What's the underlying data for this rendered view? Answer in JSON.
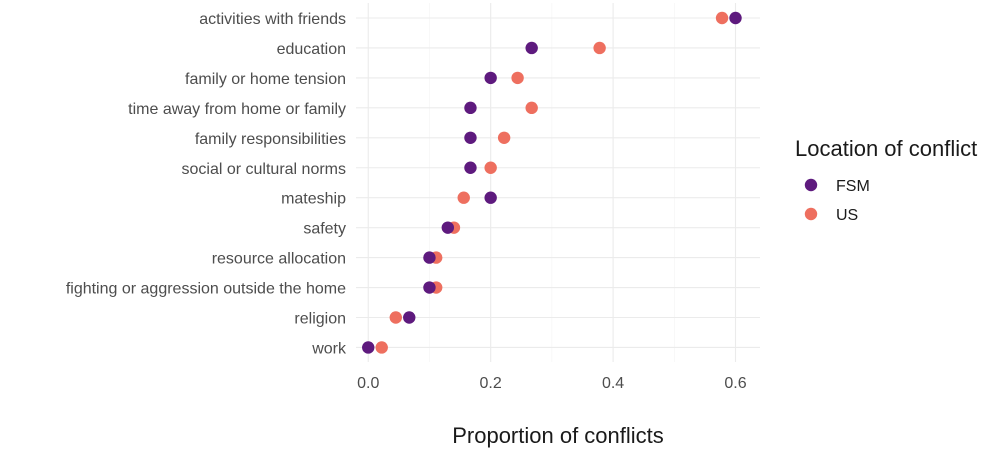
{
  "chart_data": {
    "type": "scatter",
    "title": "",
    "xlabel": "Proportion of conflicts",
    "ylabel": "",
    "xlim": [
      -0.02,
      0.64
    ],
    "xticks": [
      0.0,
      0.2,
      0.4,
      0.6
    ],
    "xtick_labels": [
      "0.0",
      "0.2",
      "0.4",
      "0.6"
    ],
    "grid": true,
    "legend_position": "right",
    "legend_title": "Location of conflict",
    "categories": [
      "activities with friends",
      "education",
      "family or home tension",
      "time away from home or family",
      "family responsibilities",
      "social or cultural norms",
      "mateship",
      "safety",
      "resource allocation",
      "fighting or aggression outside the home",
      "religion",
      "work"
    ],
    "series": [
      {
        "name": "US",
        "color": "#ee6f5f",
        "values": [
          0.578,
          0.378,
          0.244,
          0.267,
          0.222,
          0.2,
          0.156,
          0.14,
          0.111,
          0.111,
          0.045,
          0.022
        ]
      },
      {
        "name": "FSM",
        "color": "#5e1a7e",
        "values": [
          0.6,
          0.267,
          0.2,
          0.167,
          0.167,
          0.167,
          0.2,
          0.13,
          0.1,
          0.1,
          0.067,
          0.0
        ]
      }
    ]
  }
}
